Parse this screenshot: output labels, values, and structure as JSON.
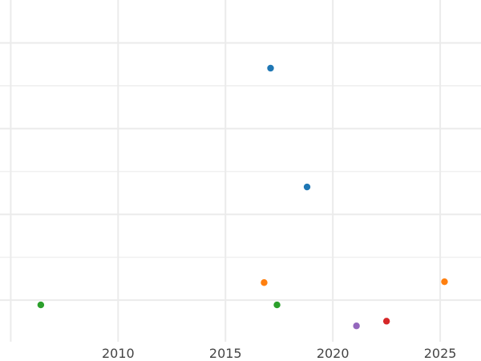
{
  "chart_data": {
    "type": "scatter",
    "title": "",
    "xlabel": "",
    "ylabel": "",
    "xlim": [
      2004.5,
      2026.9
    ],
    "ylim": [
      -0.97,
      7.0
    ],
    "x_ticks": [
      2010,
      2015,
      2020,
      2025
    ],
    "x_tick_labels": [
      "2010",
      "2015",
      "2020",
      "2025"
    ],
    "x_minor_gridlines": [
      2005
    ],
    "y_gridlines": [
      0,
      1,
      2,
      3,
      4,
      5,
      6
    ],
    "y_tick_labels_visible": false,
    "grid": true,
    "points": [
      {
        "x": 2017.1,
        "y": 5.41,
        "color": "#1f77b4"
      },
      {
        "x": 2018.8,
        "y": 2.64,
        "color": "#1f77b4"
      },
      {
        "x": 2016.8,
        "y": 0.41,
        "color": "#ff7f0e"
      },
      {
        "x": 2025.2,
        "y": 0.43,
        "color": "#ff7f0e"
      },
      {
        "x": 2006.4,
        "y": -0.11,
        "color": "#2ca02c"
      },
      {
        "x": 2017.4,
        "y": -0.11,
        "color": "#2ca02c"
      },
      {
        "x": 2021.1,
        "y": -0.6,
        "color": "#9467bd"
      },
      {
        "x": 2022.5,
        "y": -0.49,
        "color": "#d62728"
      }
    ]
  }
}
